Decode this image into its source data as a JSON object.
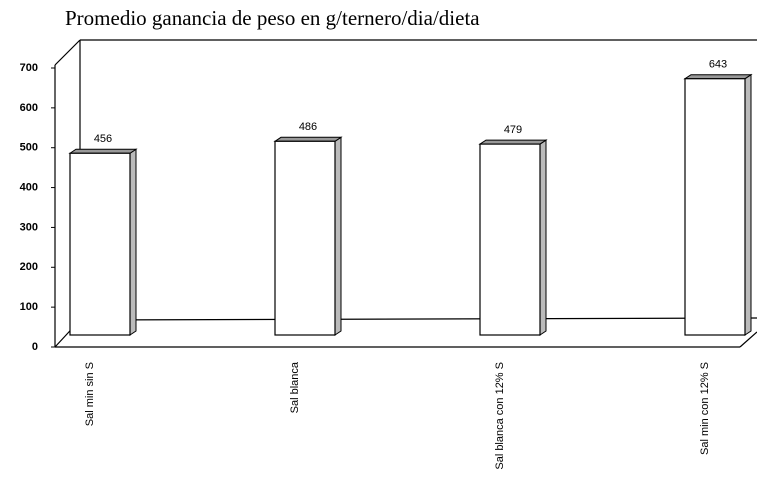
{
  "chart_data": {
    "type": "bar3d",
    "title": "Promedio ganancia de peso en g/ternero/dia/dieta",
    "categories": [
      "Sal min sin S",
      "Sal blanca",
      "Sal blanca con 12% S",
      "Sal min con 12% S"
    ],
    "values": [
      456,
      486,
      479,
      643
    ],
    "color": "#ffffff",
    "ylim": [
      0,
      700
    ],
    "yticks": [
      0,
      100,
      200,
      300,
      400,
      500,
      600,
      700
    ]
  }
}
